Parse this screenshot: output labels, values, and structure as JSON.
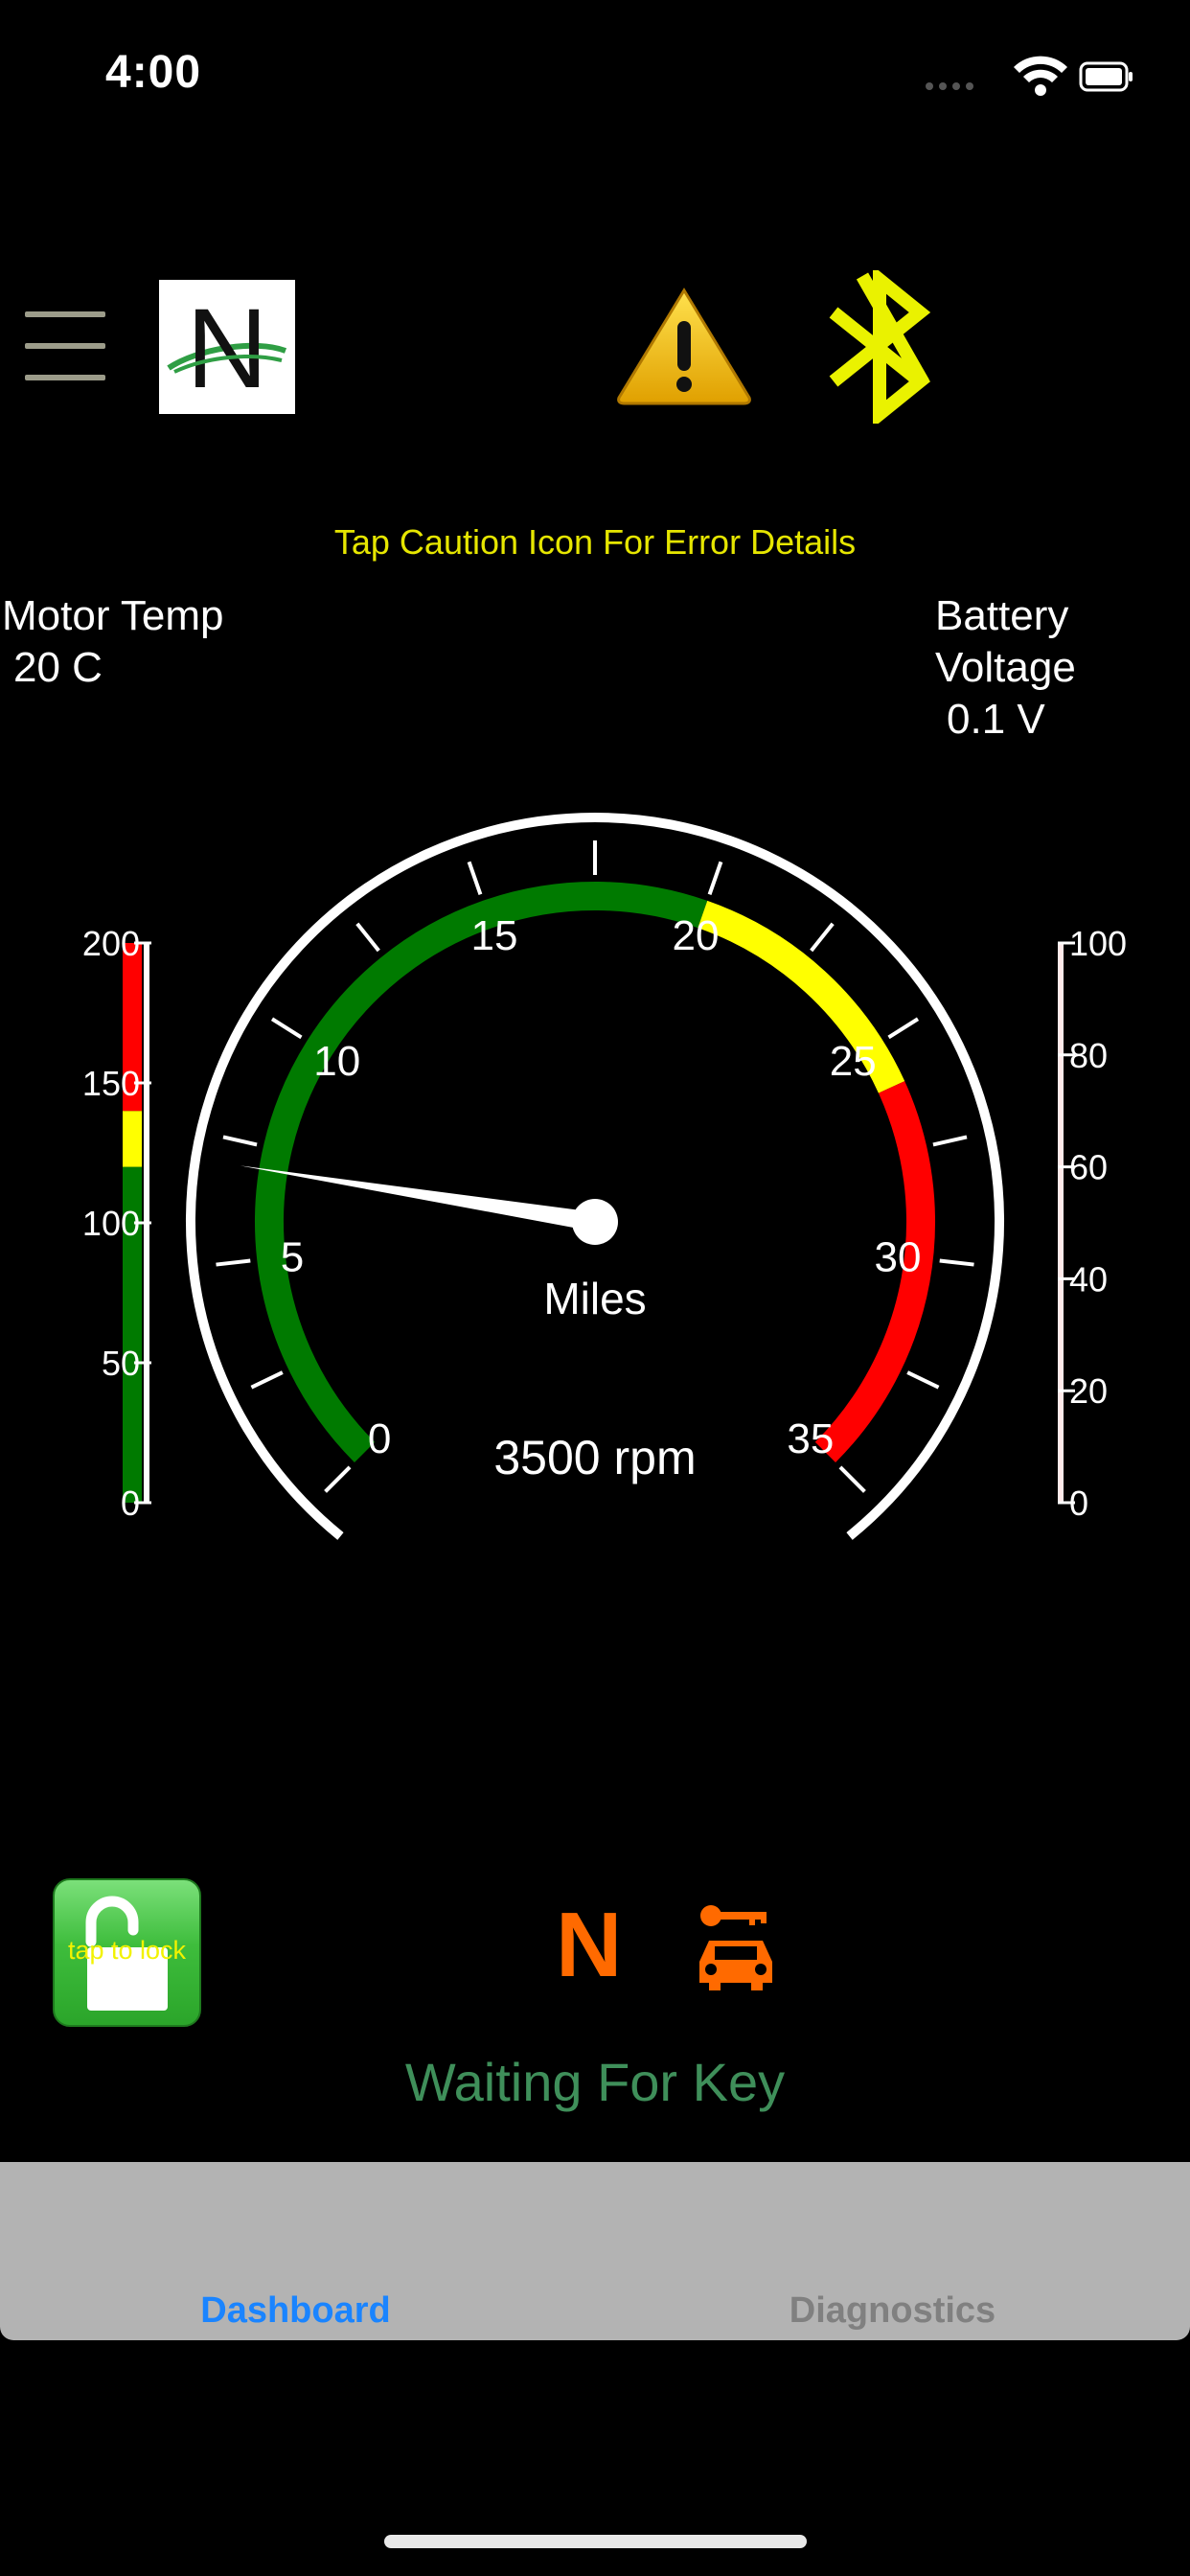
{
  "status_bar": {
    "time": "4:00"
  },
  "header": {
    "hint": "Tap Caution Icon For Error Details"
  },
  "labels": {
    "motor_temp_title": "Motor Temp",
    "motor_temp_value": "20 C",
    "battery_title_1": "Battery",
    "battery_title_2": "Voltage",
    "battery_value": "0.1 V"
  },
  "gauge": {
    "unit_label": "Miles",
    "rpm_text": "3500 rpm",
    "tick_labels": [
      "0",
      "5",
      "10",
      "15",
      "20",
      "25",
      "30",
      "35"
    ],
    "min": 0,
    "max": 35,
    "needle_value": 7,
    "zones": [
      {
        "from": 0,
        "to": 20,
        "color": "#007a00"
      },
      {
        "from": 20,
        "to": 26,
        "color": "#ffff00"
      },
      {
        "from": 26,
        "to": 35,
        "color": "#ff0000"
      }
    ]
  },
  "temp_bar": {
    "ticks": [
      "200",
      "150",
      "100",
      "50",
      "0"
    ],
    "max": 200,
    "zones": [
      {
        "from": 0,
        "to": 120,
        "color": "#007a00"
      },
      {
        "from": 120,
        "to": 140,
        "color": "#ffff00"
      },
      {
        "from": 140,
        "to": 200,
        "color": "#ff0000"
      }
    ]
  },
  "voltage_bar": {
    "ticks": [
      "100",
      "80",
      "60",
      "40",
      "20",
      "0"
    ]
  },
  "controls": {
    "lock_label": "tap to lock",
    "gear": "N",
    "status": "Waiting For Key"
  },
  "tabs": [
    {
      "label": "Dashboard",
      "active": true
    },
    {
      "label": "Diagnostics",
      "active": false
    }
  ],
  "colors": {
    "accent_orange": "#ff6a00",
    "tab_active": "#1a84ff",
    "hint_yellow": "#e6e600",
    "status_green": "#3f8f5a"
  }
}
